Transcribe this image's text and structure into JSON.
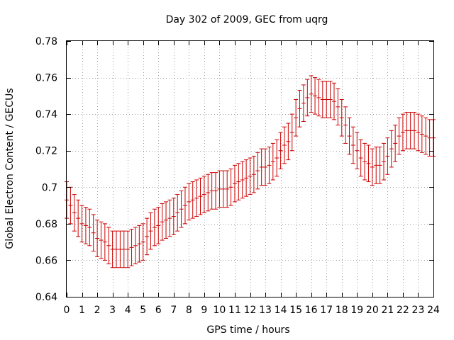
{
  "chart_data": {
    "type": "scatter",
    "style": "errorbars",
    "title": "Day 302 of 2009, GEC from uqrg",
    "xlabel": "GPS time / hours",
    "ylabel": "Global Electron Content / GECUs",
    "xlim": [
      0,
      24
    ],
    "ylim": [
      0.64,
      0.78
    ],
    "xticks": [
      0,
      1,
      2,
      3,
      4,
      5,
      6,
      7,
      8,
      9,
      10,
      11,
      12,
      13,
      14,
      15,
      16,
      17,
      18,
      19,
      20,
      21,
      22,
      23,
      24
    ],
    "yticks": [
      0.64,
      0.66,
      0.68,
      0.7,
      0.72,
      0.74,
      0.76,
      0.78
    ],
    "ytick_labels": [
      "0.64",
      "0.66",
      "0.68",
      "0.7",
      "0.72",
      "0.74",
      "0.76",
      "0.78"
    ],
    "grid": true,
    "series_color": "#cc0000",
    "series": [
      {
        "name": "GEC",
        "x": [
          0.0,
          0.25,
          0.5,
          0.75,
          1.0,
          1.25,
          1.5,
          1.75,
          2.0,
          2.25,
          2.5,
          2.75,
          3.0,
          3.25,
          3.5,
          3.75,
          4.0,
          4.25,
          4.5,
          4.75,
          5.0,
          5.25,
          5.5,
          5.75,
          6.0,
          6.25,
          6.5,
          6.75,
          7.0,
          7.25,
          7.5,
          7.75,
          8.0,
          8.25,
          8.5,
          8.75,
          9.0,
          9.25,
          9.5,
          9.75,
          10.0,
          10.25,
          10.5,
          10.75,
          11.0,
          11.25,
          11.5,
          11.75,
          12.0,
          12.25,
          12.5,
          12.75,
          13.0,
          13.25,
          13.5,
          13.75,
          14.0,
          14.25,
          14.5,
          14.75,
          15.0,
          15.25,
          15.5,
          15.75,
          16.0,
          16.25,
          16.5,
          16.75,
          17.0,
          17.25,
          17.5,
          17.75,
          18.0,
          18.25,
          18.5,
          18.75,
          19.0,
          19.25,
          19.5,
          19.75,
          20.0,
          20.25,
          20.5,
          20.75,
          21.0,
          21.25,
          21.5,
          21.75,
          22.0,
          22.25,
          22.5,
          22.75,
          23.0,
          23.25,
          23.5,
          23.75,
          24.0
        ],
        "y": [
          0.693,
          0.69,
          0.686,
          0.683,
          0.68,
          0.679,
          0.678,
          0.675,
          0.672,
          0.671,
          0.67,
          0.668,
          0.666,
          0.666,
          0.666,
          0.666,
          0.666,
          0.667,
          0.668,
          0.669,
          0.67,
          0.673,
          0.676,
          0.678,
          0.679,
          0.681,
          0.682,
          0.683,
          0.684,
          0.686,
          0.688,
          0.69,
          0.692,
          0.693,
          0.694,
          0.695,
          0.696,
          0.697,
          0.698,
          0.698,
          0.699,
          0.699,
          0.699,
          0.7,
          0.702,
          0.703,
          0.704,
          0.705,
          0.706,
          0.707,
          0.709,
          0.711,
          0.711,
          0.712,
          0.714,
          0.716,
          0.72,
          0.723,
          0.725,
          0.73,
          0.738,
          0.743,
          0.746,
          0.749,
          0.751,
          0.75,
          0.749,
          0.748,
          0.748,
          0.748,
          0.747,
          0.744,
          0.738,
          0.734,
          0.728,
          0.723,
          0.72,
          0.716,
          0.714,
          0.713,
          0.711,
          0.712,
          0.712,
          0.714,
          0.717,
          0.721,
          0.724,
          0.728,
          0.73,
          0.731,
          0.731,
          0.731,
          0.73,
          0.729,
          0.728,
          0.727,
          0.727
        ],
        "error": 0.01
      }
    ]
  }
}
